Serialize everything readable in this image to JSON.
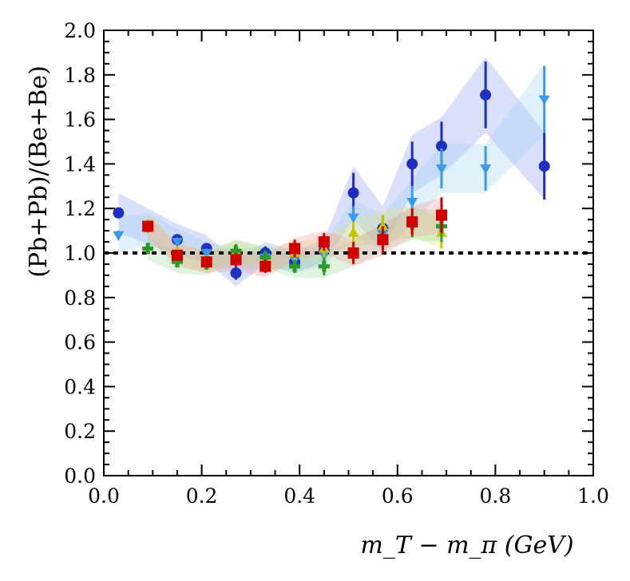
{
  "chart_data": {
    "type": "scatter",
    "title": "",
    "xlabel": "m_T − m_π (GeV)",
    "ylabel": "(Pb+Pb)/(Be+Be)",
    "xlim": [
      0.0,
      1.0
    ],
    "ylim": [
      0.0,
      2.0
    ],
    "x_ticks": [
      "0.0",
      "0.2",
      "0.4",
      "0.6",
      "0.8",
      "1.0"
    ],
    "y_ticks": [
      "0.0",
      "0.2",
      "0.4",
      "0.6",
      "0.8",
      "1.0",
      "1.2",
      "1.4",
      "1.6",
      "1.8",
      "2.0"
    ],
    "reference_line": {
      "y": 1.0,
      "style": "dotted"
    },
    "series": [
      {
        "name": "blue circles",
        "marker": "circle",
        "color": "#1f2fbf",
        "band_color": "#8c9cf0",
        "points": [
          {
            "x": 0.03,
            "y": 1.18,
            "err": 0.02,
            "band": 0.09
          },
          {
            "x": 0.09,
            "y": 1.12,
            "err": 0.02,
            "band": 0.08
          },
          {
            "x": 0.15,
            "y": 1.06,
            "err": 0.02,
            "band": 0.07
          },
          {
            "x": 0.21,
            "y": 1.02,
            "err": 0.02,
            "band": 0.06
          },
          {
            "x": 0.27,
            "y": 0.91,
            "err": 0.03,
            "band": 0.06
          },
          {
            "x": 0.33,
            "y": 1.0,
            "err": 0.03,
            "band": 0.05
          },
          {
            "x": 0.39,
            "y": 0.96,
            "err": 0.03,
            "band": 0.05
          },
          {
            "x": 0.45,
            "y": 1.01,
            "err": 0.04,
            "band": 0.05
          },
          {
            "x": 0.51,
            "y": 1.27,
            "err": 0.09,
            "band": 0.12
          },
          {
            "x": 0.57,
            "y": 1.11,
            "err": 0.06,
            "band": 0.1
          },
          {
            "x": 0.63,
            "y": 1.4,
            "err": 0.1,
            "band": 0.13
          },
          {
            "x": 0.69,
            "y": 1.48,
            "err": 0.11,
            "band": 0.13
          },
          {
            "x": 0.78,
            "y": 1.71,
            "err": 0.15,
            "band": 0.17
          },
          {
            "x": 0.9,
            "y": 1.39,
            "err": 0.15,
            "band": 0.15
          }
        ]
      },
      {
        "name": "light blue triangles",
        "marker": "triangle-down",
        "color": "#3a9ae8",
        "band_color": "#9ed4f5",
        "points": [
          {
            "x": 0.03,
            "y": 1.08,
            "err": 0.02,
            "band": 0.08
          },
          {
            "x": 0.09,
            "y": 1.11,
            "err": 0.02,
            "band": 0.07
          },
          {
            "x": 0.15,
            "y": 1.05,
            "err": 0.02,
            "band": 0.06
          },
          {
            "x": 0.21,
            "y": 1.0,
            "err": 0.02,
            "band": 0.05
          },
          {
            "x": 0.27,
            "y": 0.97,
            "err": 0.03,
            "band": 0.05
          },
          {
            "x": 0.33,
            "y": 0.98,
            "err": 0.03,
            "band": 0.05
          },
          {
            "x": 0.39,
            "y": 0.97,
            "err": 0.03,
            "band": 0.05
          },
          {
            "x": 0.45,
            "y": 0.99,
            "err": 0.04,
            "band": 0.05
          },
          {
            "x": 0.51,
            "y": 1.16,
            "err": 0.05,
            "band": 0.08
          },
          {
            "x": 0.57,
            "y": 1.09,
            "err": 0.05,
            "band": 0.08
          },
          {
            "x": 0.63,
            "y": 1.23,
            "err": 0.07,
            "band": 0.1
          },
          {
            "x": 0.69,
            "y": 1.38,
            "err": 0.09,
            "band": 0.11
          },
          {
            "x": 0.78,
            "y": 1.38,
            "err": 0.1,
            "band": 0.11
          },
          {
            "x": 0.9,
            "y": 1.69,
            "err": 0.15,
            "band": 0.16
          }
        ]
      },
      {
        "name": "yellow triangles",
        "marker": "triangle-up",
        "color": "#c9c200",
        "band_color": "#e6e27a",
        "points": [
          {
            "x": 0.09,
            "y": 1.12,
            "err": 0.03,
            "band": 0.06
          },
          {
            "x": 0.15,
            "y": 1.0,
            "err": 0.03,
            "band": 0.05
          },
          {
            "x": 0.21,
            "y": 0.96,
            "err": 0.03,
            "band": 0.05
          },
          {
            "x": 0.27,
            "y": 1.01,
            "err": 0.03,
            "band": 0.05
          },
          {
            "x": 0.33,
            "y": 0.97,
            "err": 0.03,
            "band": 0.05
          },
          {
            "x": 0.39,
            "y": 1.0,
            "err": 0.03,
            "band": 0.05
          },
          {
            "x": 0.45,
            "y": 1.02,
            "err": 0.04,
            "band": 0.05
          },
          {
            "x": 0.51,
            "y": 1.09,
            "err": 0.05,
            "band": 0.06
          },
          {
            "x": 0.57,
            "y": 1.12,
            "err": 0.05,
            "band": 0.07
          },
          {
            "x": 0.63,
            "y": 1.14,
            "err": 0.06,
            "band": 0.07
          },
          {
            "x": 0.69,
            "y": 1.09,
            "err": 0.07,
            "band": 0.07
          }
        ]
      },
      {
        "name": "green crosses",
        "marker": "plus",
        "color": "#2a9a2a",
        "band_color": "#9ad99a",
        "points": [
          {
            "x": 0.09,
            "y": 1.02,
            "err": 0.02,
            "band": 0.05
          },
          {
            "x": 0.15,
            "y": 0.96,
            "err": 0.02,
            "band": 0.05
          },
          {
            "x": 0.21,
            "y": 0.95,
            "err": 0.02,
            "band": 0.05
          },
          {
            "x": 0.27,
            "y": 1.01,
            "err": 0.03,
            "band": 0.05
          },
          {
            "x": 0.33,
            "y": 0.98,
            "err": 0.03,
            "band": 0.05
          },
          {
            "x": 0.39,
            "y": 0.94,
            "err": 0.03,
            "band": 0.05
          },
          {
            "x": 0.45,
            "y": 0.94,
            "err": 0.04,
            "band": 0.05
          },
          {
            "x": 0.51,
            "y": 1.0,
            "err": 0.04,
            "band": 0.06
          },
          {
            "x": 0.57,
            "y": 1.07,
            "err": 0.05,
            "band": 0.06
          },
          {
            "x": 0.63,
            "y": 1.13,
            "err": 0.06,
            "band": 0.07
          },
          {
            "x": 0.69,
            "y": 1.12,
            "err": 0.07,
            "band": 0.07
          }
        ]
      },
      {
        "name": "red squares",
        "marker": "square",
        "color": "#d00000",
        "band_color": "#f0a0a0",
        "points": [
          {
            "x": 0.09,
            "y": 1.12,
            "err": 0.02,
            "band": 0.05
          },
          {
            "x": 0.15,
            "y": 0.99,
            "err": 0.02,
            "band": 0.05
          },
          {
            "x": 0.21,
            "y": 0.96,
            "err": 0.02,
            "band": 0.05
          },
          {
            "x": 0.27,
            "y": 0.97,
            "err": 0.03,
            "band": 0.05
          },
          {
            "x": 0.33,
            "y": 0.94,
            "err": 0.03,
            "band": 0.05
          },
          {
            "x": 0.39,
            "y": 1.02,
            "err": 0.04,
            "band": 0.05
          },
          {
            "x": 0.45,
            "y": 1.05,
            "err": 0.04,
            "band": 0.05
          },
          {
            "x": 0.51,
            "y": 1.0,
            "err": 0.05,
            "band": 0.06
          },
          {
            "x": 0.57,
            "y": 1.06,
            "err": 0.06,
            "band": 0.07
          },
          {
            "x": 0.63,
            "y": 1.14,
            "err": 0.06,
            "band": 0.07
          },
          {
            "x": 0.69,
            "y": 1.17,
            "err": 0.08,
            "band": 0.08
          }
        ]
      }
    ]
  }
}
